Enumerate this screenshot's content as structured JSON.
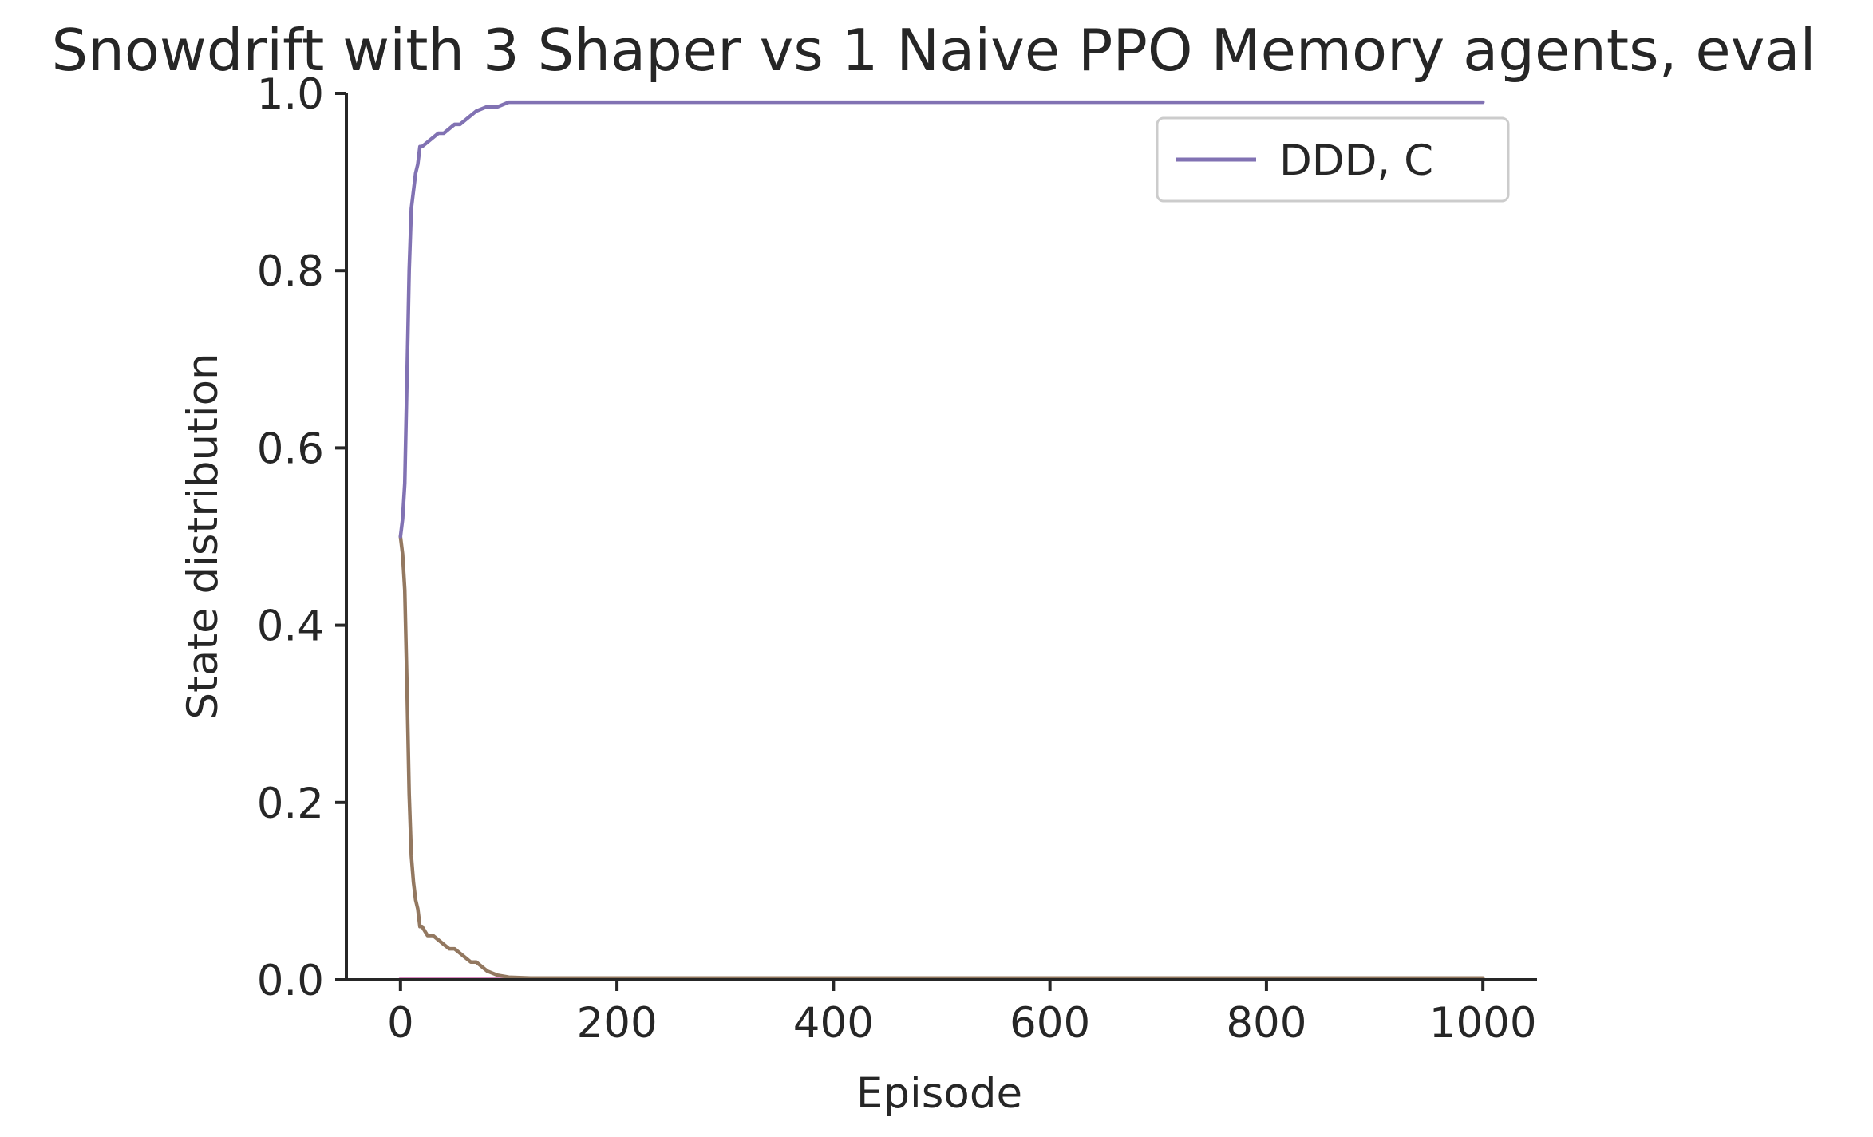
{
  "chart_data": {
    "type": "line",
    "title": "Snowdrift with 3 Shaper vs 1 Naive PPO Memory agents, eval",
    "xlabel": "Episode",
    "ylabel": "State distribution",
    "xlim": [
      -50,
      1050
    ],
    "ylim": [
      0.0,
      1.0
    ],
    "xticks": [
      0,
      200,
      400,
      600,
      800,
      1000
    ],
    "yticks": [
      0.0,
      0.2,
      0.4,
      0.6,
      0.8,
      1.0
    ],
    "xtick_labels": [
      "0",
      "200",
      "400",
      "600",
      "800",
      "1000"
    ],
    "ytick_labels": [
      "0.0",
      "0.2",
      "0.4",
      "0.6",
      "0.8",
      "1.0"
    ],
    "grid": false,
    "legend_position": "upper-right",
    "legend": [
      {
        "label": "DDD, C",
        "color": "#8172b3"
      }
    ],
    "series": [
      {
        "name": "DDD, C",
        "color": "#8172b3",
        "x": [
          0,
          2,
          4,
          6,
          8,
          10,
          12,
          14,
          16,
          18,
          20,
          25,
          30,
          35,
          40,
          45,
          50,
          55,
          60,
          65,
          70,
          80,
          90,
          100,
          110,
          120,
          150,
          200,
          300,
          400,
          500,
          600,
          700,
          800,
          850,
          900,
          1000
        ],
        "y": [
          0.5,
          0.52,
          0.56,
          0.68,
          0.8,
          0.87,
          0.89,
          0.91,
          0.92,
          0.94,
          0.94,
          0.945,
          0.95,
          0.955,
          0.955,
          0.96,
          0.965,
          0.965,
          0.97,
          0.975,
          0.98,
          0.985,
          0.985,
          0.99,
          0.99,
          0.99,
          0.99,
          0.99,
          0.99,
          0.99,
          0.99,
          0.99,
          0.99,
          0.99,
          0.99,
          0.99,
          0.99
        ]
      },
      {
        "color": "#937860",
        "x": [
          0,
          2,
          4,
          6,
          8,
          10,
          12,
          14,
          16,
          18,
          20,
          25,
          30,
          35,
          40,
          45,
          50,
          55,
          60,
          65,
          70,
          75,
          80,
          90,
          100,
          120,
          150,
          200,
          400,
          600,
          800,
          1000
        ],
        "y": [
          0.5,
          0.48,
          0.44,
          0.33,
          0.21,
          0.14,
          0.11,
          0.09,
          0.08,
          0.06,
          0.06,
          0.05,
          0.05,
          0.045,
          0.04,
          0.035,
          0.035,
          0.03,
          0.025,
          0.02,
          0.02,
          0.015,
          0.01,
          0.005,
          0.003,
          0.002,
          0.002,
          0.002,
          0.002,
          0.002,
          0.002,
          0.002
        ]
      },
      {
        "color": "#da8bc3",
        "x": [
          0,
          100,
          200,
          400,
          600,
          800,
          850,
          1000
        ],
        "y": [
          0.001,
          0.001,
          0.001,
          0.001,
          0.002,
          0.001,
          0.002,
          0.001
        ]
      },
      {
        "color": "#c44e52",
        "x": [
          0,
          100,
          200,
          400,
          600,
          800,
          1000
        ],
        "y": [
          0.0005,
          0.0005,
          0.0005,
          0.0005,
          0.0005,
          0.0005,
          0.0005
        ]
      }
    ]
  }
}
